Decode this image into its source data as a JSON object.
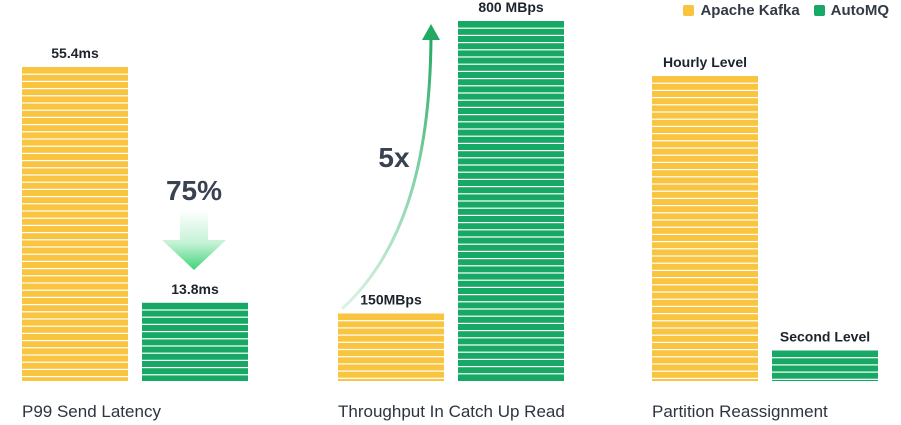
{
  "legend": [
    {
      "name": "Apache Kafka",
      "color": "#f9c440"
    },
    {
      "name": "AutoMQ",
      "color": "#16a864"
    }
  ],
  "chart_data": [
    {
      "type": "bar",
      "title": "P99 Send Latency",
      "categories": [
        "Apache Kafka",
        "AutoMQ"
      ],
      "values": [
        55.4,
        13.8
      ],
      "data_labels": [
        "55.4ms",
        "13.8ms"
      ],
      "annotation": "75%"
    },
    {
      "type": "bar",
      "title": "Throughput In Catch Up Read",
      "categories": [
        "Apache Kafka",
        "AutoMQ"
      ],
      "values": [
        150,
        800
      ],
      "data_labels": [
        "150MBps",
        "800 MBps"
      ],
      "annotation": "5x"
    },
    {
      "type": "bar",
      "title": "Partition Reassignment",
      "categories": [
        "Apache Kafka",
        "AutoMQ"
      ],
      "values": [
        1,
        0.1
      ],
      "data_labels": [
        "Hourly Level",
        "Second Level"
      ]
    }
  ]
}
